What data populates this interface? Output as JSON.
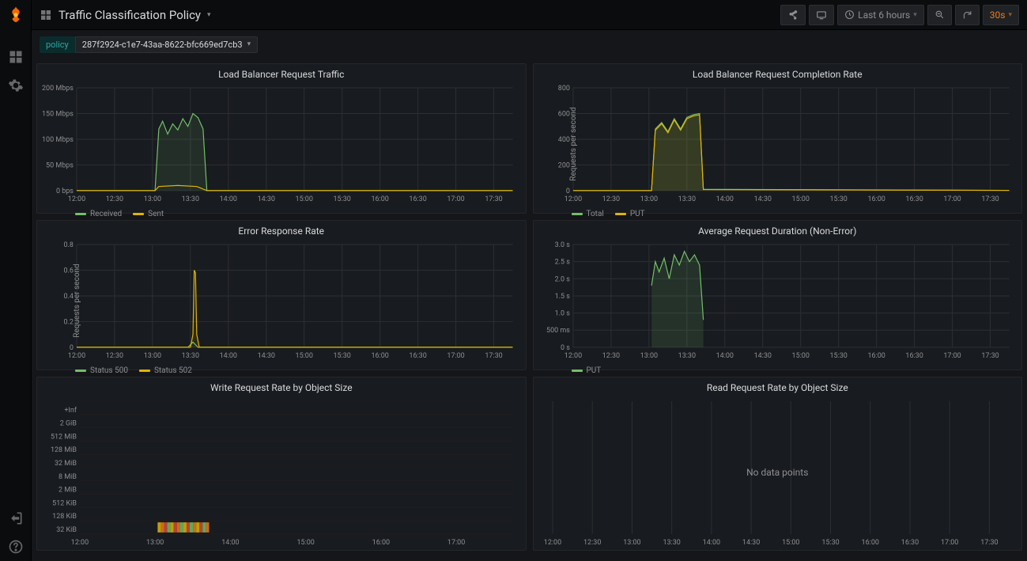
{
  "header": {
    "title": "Traffic Classification Policy",
    "time_range": "Last 6 hours",
    "refresh_interval": "30s"
  },
  "variable": {
    "label": "policy",
    "value": "287f2924-c1e7-43aa-8622-bfc669ed7cb3"
  },
  "x_axis": {
    "start": "12:00",
    "end": "17:45",
    "ticks": [
      "12:00",
      "12:30",
      "13:00",
      "13:30",
      "14:00",
      "14:30",
      "15:00",
      "15:30",
      "16:00",
      "16:30",
      "17:00",
      "17:30"
    ],
    "tick_minutes": [
      0,
      30,
      60,
      90,
      120,
      150,
      180,
      210,
      240,
      270,
      300,
      330
    ],
    "total_minutes": 345
  },
  "panels": {
    "traffic": {
      "title": "Load Balancer Request Traffic",
      "ylabel": "",
      "ylim": [
        0,
        200
      ],
      "yticks": [
        0,
        50,
        100,
        150,
        200
      ],
      "ytick_labels": [
        "0 bps",
        "50 Mbps",
        "100 Mbps",
        "150 Mbps",
        "200 Mbps"
      ],
      "series": [
        {
          "name": "Received",
          "color": "#73bf69",
          "fill": 0.12,
          "points": [
            [
              0,
              0
            ],
            [
              62,
              0
            ],
            [
              65,
              120
            ],
            [
              68,
              135
            ],
            [
              72,
              110
            ],
            [
              76,
              130
            ],
            [
              80,
              118
            ],
            [
              84,
              140
            ],
            [
              88,
              125
            ],
            [
              92,
              150
            ],
            [
              96,
              142
            ],
            [
              100,
              120
            ],
            [
              103,
              0
            ],
            [
              345,
              0
            ]
          ]
        },
        {
          "name": "Sent",
          "color": "#e0b400",
          "fill": 0,
          "points": [
            [
              0,
              0
            ],
            [
              62,
              0
            ],
            [
              65,
              8
            ],
            [
              80,
              10
            ],
            [
              95,
              8
            ],
            [
              103,
              0
            ],
            [
              345,
              0
            ]
          ]
        }
      ]
    },
    "completion": {
      "title": "Load Balancer Request Completion Rate",
      "ylabel": "Requests per second",
      "ylim": [
        0,
        800
      ],
      "yticks": [
        0,
        200,
        400,
        600,
        800
      ],
      "ytick_labels": [
        "0",
        "200",
        "400",
        "600",
        "800"
      ],
      "series": [
        {
          "name": "Total",
          "color": "#73bf69",
          "fill": 0.12,
          "points": [
            [
              0,
              0
            ],
            [
              62,
              0
            ],
            [
              65,
              480
            ],
            [
              70,
              530
            ],
            [
              75,
              460
            ],
            [
              80,
              560
            ],
            [
              85,
              480
            ],
            [
              90,
              570
            ],
            [
              95,
              590
            ],
            [
              100,
              600
            ],
            [
              103,
              10
            ],
            [
              345,
              2
            ]
          ]
        },
        {
          "name": "PUT",
          "color": "#e0b400",
          "fill": 0.1,
          "points": [
            [
              0,
              0
            ],
            [
              62,
              0
            ],
            [
              65,
              470
            ],
            [
              70,
              520
            ],
            [
              75,
              450
            ],
            [
              80,
              550
            ],
            [
              85,
              470
            ],
            [
              90,
              560
            ],
            [
              95,
              580
            ],
            [
              100,
              590
            ],
            [
              103,
              8
            ],
            [
              345,
              2
            ]
          ]
        }
      ]
    },
    "errors": {
      "title": "Error Response Rate",
      "ylabel": "Requests per second",
      "ylim": [
        0,
        0.8
      ],
      "yticks": [
        0,
        0.2,
        0.4,
        0.6,
        0.8
      ],
      "ytick_labels": [
        "0",
        "0.2",
        "0.4",
        "0.6",
        "0.8"
      ],
      "series": [
        {
          "name": "Status 500",
          "color": "#73bf69",
          "fill": 0,
          "points": [
            [
              0,
              0
            ],
            [
              88,
              0
            ],
            [
              90,
              0.02
            ],
            [
              92,
              0.04
            ],
            [
              94,
              0.02
            ],
            [
              96,
              0
            ],
            [
              345,
              0
            ]
          ]
        },
        {
          "name": "Status 502",
          "color": "#e0b400",
          "fill": 0.1,
          "points": [
            [
              0,
              0
            ],
            [
              90,
              0
            ],
            [
              92,
              0.1
            ],
            [
              93,
              0.6
            ],
            [
              94,
              0.58
            ],
            [
              95,
              0.1
            ],
            [
              97,
              0
            ],
            [
              345,
              0
            ]
          ]
        }
      ]
    },
    "duration": {
      "title": "Average Request Duration (Non-Error)",
      "ylabel": "",
      "ylim": [
        0,
        3.0
      ],
      "yticks": [
        0,
        0.5,
        1.0,
        1.5,
        2.0,
        2.5,
        3.0
      ],
      "ytick_labels": [
        "0 s",
        "500 ms",
        "1.0 s",
        "1.5 s",
        "2.0 s",
        "2.5 s",
        "3.0 s"
      ],
      "series": [
        {
          "name": "PUT",
          "color": "#73bf69",
          "fill": 0.15,
          "points": [
            [
              62,
              1.8
            ],
            [
              65,
              2.5
            ],
            [
              68,
              2.2
            ],
            [
              72,
              2.6
            ],
            [
              76,
              2.0
            ],
            [
              80,
              2.7
            ],
            [
              84,
              2.4
            ],
            [
              88,
              2.8
            ],
            [
              92,
              2.5
            ],
            [
              96,
              2.7
            ],
            [
              100,
              2.4
            ],
            [
              103,
              0.8
            ]
          ]
        }
      ]
    },
    "write_rate": {
      "title": "Write Request Rate by Object Size",
      "ytick_labels": [
        "32 KiB",
        "128 KiB",
        "512 KiB",
        "2 MiB",
        "8 MiB",
        "32 MiB",
        "128 MiB",
        "512 MiB",
        "2 GiB",
        "+Inf"
      ],
      "x_ticks": [
        "12:00",
        "13:00",
        "14:00",
        "15:00",
        "16:00",
        "17:00"
      ],
      "x_tick_minutes": [
        0,
        60,
        120,
        180,
        240,
        300
      ],
      "heat": {
        "row_index": 0,
        "x_start": 62,
        "x_end": 103,
        "colors": [
          "#e0b400",
          "#eb7b18",
          "#d44a3a",
          "#73bf69",
          "#e0b400",
          "#d44a3a",
          "#eb7b18",
          "#73bf69",
          "#e0b400",
          "#d44a3a",
          "#73bf69",
          "#eb7b18",
          "#e0b400",
          "#d44a3a",
          "#73bf69",
          "#eb7b18"
        ]
      }
    },
    "read_rate": {
      "title": "Read Request Rate by Object Size",
      "x_ticks": [
        "12:00",
        "12:30",
        "13:00",
        "13:30",
        "14:00",
        "14:30",
        "15:00",
        "15:30",
        "16:00",
        "16:30",
        "17:00",
        "17:30"
      ],
      "no_data_text": "No data points"
    }
  },
  "colors": {
    "grid": "#2c2f33",
    "axis_text": "#8e8f92",
    "panel_bg": "#181b1f"
  }
}
